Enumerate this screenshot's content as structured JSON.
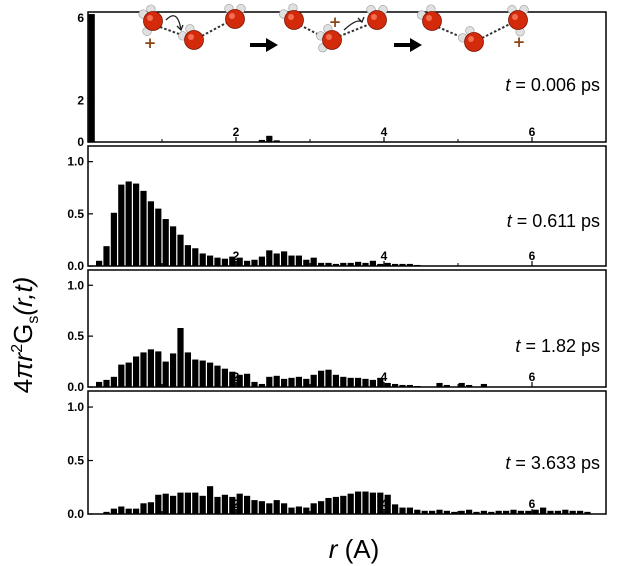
{
  "chart_data": [
    {
      "type": "bar",
      "panel_label": {
        "var": "t",
        "value": "0.006",
        "unit": "ps"
      },
      "xlim": [
        0,
        7
      ],
      "ylim": [
        0,
        6.3
      ],
      "x_ticks": [
        "2",
        "4",
        "6"
      ],
      "y_ticks": [
        "0",
        "2",
        "6"
      ],
      "bar_width": 0.1,
      "x": [
        0.05,
        2.35,
        2.45,
        2.55
      ],
      "values": [
        6.2,
        0.1,
        0.3,
        0.08
      ]
    },
    {
      "type": "bar",
      "panel_label": {
        "var": "t",
        "value": "0.611",
        "unit": "ps"
      },
      "xlim": [
        0,
        7
      ],
      "ylim": [
        0,
        1.15
      ],
      "x_ticks": [
        "2",
        "4",
        "6"
      ],
      "y_ticks": [
        "0.0",
        "0.5",
        "1.0"
      ],
      "bar_width": 0.1,
      "x": [
        0.15,
        0.25,
        0.35,
        0.45,
        0.55,
        0.65,
        0.75,
        0.85,
        0.95,
        1.05,
        1.15,
        1.25,
        1.35,
        1.45,
        1.55,
        1.65,
        1.75,
        1.85,
        1.95,
        2.05,
        2.15,
        2.25,
        2.35,
        2.45,
        2.55,
        2.65,
        2.75,
        2.85,
        2.95,
        3.05,
        3.15,
        3.25,
        3.35,
        3.45,
        3.55,
        3.65,
        3.75,
        3.85,
        3.95,
        4.05,
        4.15,
        4.25,
        4.35,
        4.45
      ],
      "values": [
        0.05,
        0.19,
        0.51,
        0.78,
        0.81,
        0.79,
        0.72,
        0.62,
        0.55,
        0.45,
        0.38,
        0.3,
        0.2,
        0.17,
        0.12,
        0.1,
        0.08,
        0.07,
        0.09,
        0.08,
        0.05,
        0.06,
        0.09,
        0.15,
        0.12,
        0.14,
        0.1,
        0.1,
        0.06,
        0.08,
        0.03,
        0.03,
        0.02,
        0.03,
        0.03,
        0.04,
        0.03,
        0.05,
        0.02,
        0.03,
        0.02,
        0.02,
        0.02,
        0.01
      ]
    },
    {
      "type": "bar",
      "panel_label": {
        "var": "t",
        "value": "1.82",
        "unit": "ps"
      },
      "xlim": [
        0,
        7
      ],
      "ylim": [
        0,
        1.15
      ],
      "x_ticks": [
        "2",
        "4",
        "6"
      ],
      "y_ticks": [
        "0.0",
        "0.5",
        "1.0"
      ],
      "bar_width": 0.1,
      "x": [
        0.15,
        0.25,
        0.35,
        0.45,
        0.55,
        0.65,
        0.75,
        0.85,
        0.95,
        1.05,
        1.15,
        1.25,
        1.35,
        1.45,
        1.55,
        1.65,
        1.75,
        1.85,
        1.95,
        2.05,
        2.15,
        2.25,
        2.35,
        2.45,
        2.55,
        2.65,
        2.75,
        2.85,
        2.95,
        3.05,
        3.15,
        3.25,
        3.35,
        3.45,
        3.55,
        3.65,
        3.75,
        3.85,
        3.95,
        4.05,
        4.15,
        4.25,
        4.35,
        4.45,
        4.75,
        4.85,
        5.05,
        5.15,
        5.35
      ],
      "values": [
        0.05,
        0.07,
        0.1,
        0.22,
        0.24,
        0.3,
        0.34,
        0.37,
        0.35,
        0.25,
        0.33,
        0.58,
        0.34,
        0.27,
        0.26,
        0.24,
        0.21,
        0.18,
        0.15,
        0.12,
        0.13,
        0.05,
        0.03,
        0.1,
        0.11,
        0.08,
        0.09,
        0.1,
        0.08,
        0.12,
        0.16,
        0.17,
        0.12,
        0.1,
        0.09,
        0.09,
        0.08,
        0.07,
        0.09,
        0.04,
        0.03,
        0.02,
        0.02,
        0.01,
        0.04,
        0.02,
        0.04,
        0.02,
        0.03
      ]
    },
    {
      "type": "bar",
      "panel_label": {
        "var": "t",
        "value": "3.633",
        "unit": "ps"
      },
      "xlim": [
        0,
        7
      ],
      "ylim": [
        0,
        1.15
      ],
      "x_ticks": [
        "2",
        "4",
        "6"
      ],
      "y_ticks": [
        "0.0",
        "0.5",
        "1.0"
      ],
      "bar_width": 0.1,
      "x": [
        0.25,
        0.35,
        0.45,
        0.55,
        0.65,
        0.75,
        0.85,
        0.95,
        1.05,
        1.15,
        1.25,
        1.35,
        1.45,
        1.55,
        1.65,
        1.75,
        1.85,
        1.95,
        2.05,
        2.15,
        2.25,
        2.35,
        2.45,
        2.55,
        2.65,
        2.75,
        2.85,
        2.95,
        3.05,
        3.15,
        3.25,
        3.35,
        3.45,
        3.55,
        3.65,
        3.75,
        3.85,
        3.95,
        4.05,
        4.15,
        4.25,
        4.35,
        4.45,
        4.55,
        4.65,
        4.75,
        4.85,
        4.95,
        5.05,
        5.15,
        5.25,
        5.35,
        5.45,
        5.55,
        5.65,
        5.75,
        5.85,
        5.95,
        6.05,
        6.15,
        6.25,
        6.35,
        6.45,
        6.55,
        6.65,
        6.75
      ],
      "values": [
        0.02,
        0.05,
        0.07,
        0.05,
        0.05,
        0.1,
        0.11,
        0.18,
        0.19,
        0.17,
        0.2,
        0.2,
        0.2,
        0.17,
        0.26,
        0.16,
        0.18,
        0.16,
        0.19,
        0.17,
        0.13,
        0.12,
        0.1,
        0.13,
        0.1,
        0.06,
        0.07,
        0.06,
        0.1,
        0.12,
        0.15,
        0.16,
        0.17,
        0.19,
        0.21,
        0.21,
        0.2,
        0.2,
        0.18,
        0.09,
        0.06,
        0.06,
        0.04,
        0.03,
        0.03,
        0.04,
        0.03,
        0.02,
        0.03,
        0.04,
        0.02,
        0.03,
        0.02,
        0.03,
        0.03,
        0.04,
        0.03,
        0.03,
        0.04,
        0.06,
        0.03,
        0.03,
        0.04,
        0.03,
        0.03,
        0.02
      ]
    }
  ],
  "axes": {
    "y_title": {
      "prefix": "4",
      "pi": "π",
      "r": "r",
      "sup": "2",
      "G": "G",
      "sub": "s",
      "args": "(r,t)"
    },
    "x_title": {
      "r": "r",
      "unit": " (A)"
    }
  },
  "inset": {
    "plus_symbol": "+",
    "colors": {
      "oxygen": "#d42a0c",
      "hydrogen": "#e0e0e0",
      "plus": "#8b4513"
    }
  }
}
